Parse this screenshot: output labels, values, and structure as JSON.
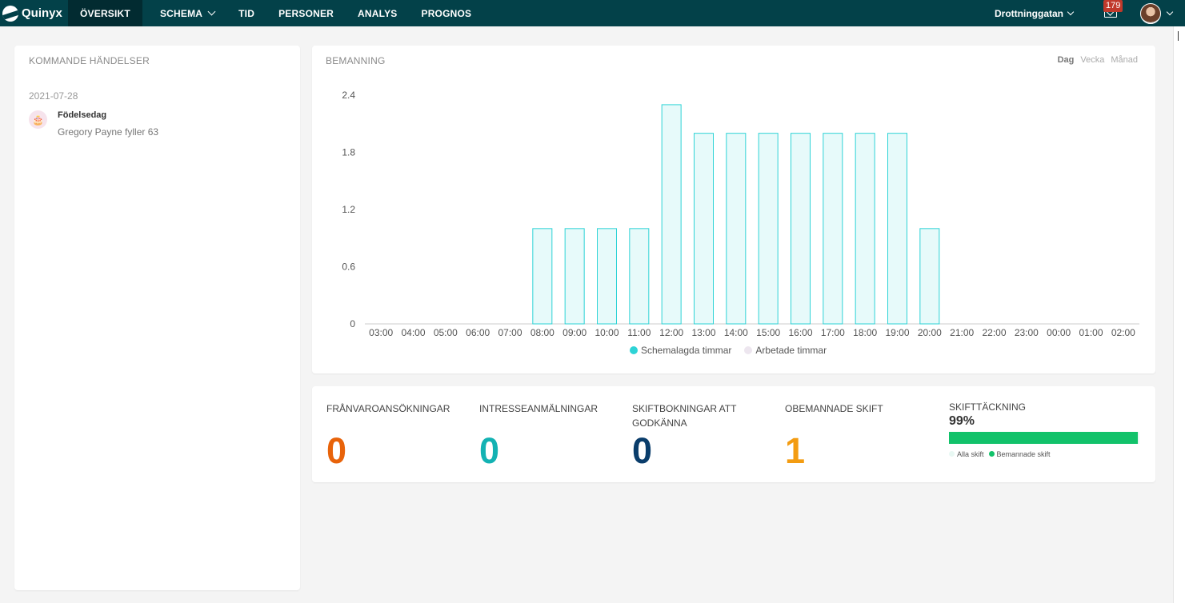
{
  "nav": {
    "logo": "Quinyx",
    "items": [
      {
        "label": "ÖVERSIKT",
        "active": true
      },
      {
        "label": "SCHEMA",
        "has_dropdown": true
      },
      {
        "label": "TID"
      },
      {
        "label": "PERSONER"
      },
      {
        "label": "ANALYS"
      },
      {
        "label": "PROGNOS"
      }
    ],
    "location": "Drottninggatan",
    "notifications": "179"
  },
  "events": {
    "title": "KOMMANDE HÄNDELSER",
    "date": "2021-07-28",
    "item": {
      "name": "Födelsedag",
      "desc": "Gregory Payne fyller 63",
      "icon": "cake-icon"
    }
  },
  "staffing": {
    "title": "BEMANNING",
    "ranges": [
      "Dag",
      "Vecka",
      "Månad"
    ],
    "selected_range": "Dag",
    "legend": [
      {
        "label": "Schemalagda timmar",
        "color": "#2ed3d6"
      },
      {
        "label": "Arbetade timmar",
        "color": "#ede6ef"
      }
    ]
  },
  "chart_data": {
    "type": "bar",
    "categories": [
      "03:00",
      "04:00",
      "05:00",
      "06:00",
      "07:00",
      "08:00",
      "09:00",
      "10:00",
      "11:00",
      "12:00",
      "13:00",
      "14:00",
      "15:00",
      "16:00",
      "17:00",
      "18:00",
      "19:00",
      "20:00",
      "21:00",
      "22:00",
      "23:00",
      "00:00",
      "01:00",
      "02:00"
    ],
    "series": [
      {
        "name": "Schemalagda timmar",
        "values": [
          0,
          0,
          0,
          0,
          0,
          1,
          1,
          1,
          1,
          2.3,
          2,
          2,
          2,
          2,
          2,
          2,
          2,
          1,
          0,
          0,
          0,
          0,
          0,
          0
        ]
      },
      {
        "name": "Arbetade timmar",
        "values": [
          0,
          0,
          0,
          0,
          0,
          0,
          0,
          0,
          0,
          0,
          0,
          0,
          0,
          0,
          0,
          0,
          0,
          0,
          0,
          0,
          0,
          0,
          0,
          0
        ]
      }
    ],
    "yticks": [
      "2.4",
      "1.8",
      "1.2",
      "0.6",
      "0"
    ],
    "ylim": [
      0,
      2.4
    ],
    "legend": "bottom-center",
    "grid": false
  },
  "stats": [
    {
      "label": "FRÅNVAROANSÖKNINGAR",
      "value": "0",
      "color": "#e8630a"
    },
    {
      "label": "INTRESSEANMÄLNINGAR",
      "value": "0",
      "color": "#13b2b3"
    },
    {
      "label": "SKIFTBOKNINGAR ATT GODKÄNNA",
      "value": "0",
      "color": "#0a3d6b"
    },
    {
      "label": "OBEMANNADE SKIFT",
      "value": "1",
      "color": "#f39c12"
    }
  ],
  "coverage": {
    "label": "SKIFTTÄCKNING",
    "percent": "99%",
    "fill_fraction": 0.99,
    "legend": [
      {
        "label": "Alla skift",
        "color": "#e8f8f3"
      },
      {
        "label": "Bemannade skift",
        "color": "#12c26a"
      }
    ]
  }
}
